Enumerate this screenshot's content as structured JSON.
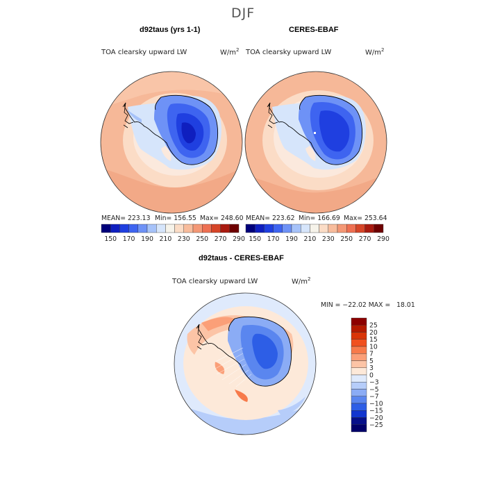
{
  "page": {
    "title": "DJF"
  },
  "chart_data": [
    {
      "type": "heatmap",
      "title": "d92taus (yrs 1-1)",
      "variable": "TOA clearsky upward LW",
      "units": "W/m",
      "units_sup": "2",
      "projection": "south polar stereographic",
      "stats": {
        "mean": "MEAN= 223.13",
        "min": "Min= 156.55",
        "max": "Max= 248.60"
      },
      "colorbar": {
        "orientation": "horizontal",
        "levels": [
          150,
          160,
          170,
          180,
          190,
          200,
          210,
          220,
          230,
          240,
          250,
          260,
          270,
          280,
          290
        ],
        "tick_labels": [
          "150",
          "170",
          "190",
          "210",
          "230",
          "250",
          "270",
          "290"
        ],
        "colors": [
          "#00007a",
          "#0f1fbf",
          "#1f3fe0",
          "#3e64f0",
          "#6e92f6",
          "#a6c2f9",
          "#d6e5fb",
          "#f6f3ea",
          "#fbdcc6",
          "#f8bc9c",
          "#f49876",
          "#ee7052",
          "#d64528",
          "#a91a0f",
          "#6e0000"
        ]
      }
    },
    {
      "type": "heatmap",
      "title": "CERES-EBAF",
      "variable": "TOA clearsky upward LW",
      "units": "W/m",
      "units_sup": "2",
      "projection": "south polar stereographic",
      "stats": {
        "mean": "MEAN= 223.62",
        "min": "Min= 166.69",
        "max": "Max= 253.64"
      },
      "colorbar": {
        "orientation": "horizontal",
        "levels": [
          150,
          160,
          170,
          180,
          190,
          200,
          210,
          220,
          230,
          240,
          250,
          260,
          270,
          280,
          290
        ],
        "tick_labels": [
          "150",
          "170",
          "190",
          "210",
          "230",
          "250",
          "270",
          "290"
        ],
        "colors": [
          "#00007a",
          "#0f1fbf",
          "#1f3fe0",
          "#3e64f0",
          "#6e92f6",
          "#a6c2f9",
          "#d6e5fb",
          "#f6f3ea",
          "#fbdcc6",
          "#f8bc9c",
          "#f49876",
          "#ee7052",
          "#d64528",
          "#a91a0f",
          "#6e0000"
        ]
      }
    },
    {
      "type": "heatmap",
      "title": "d92taus - CERES-EBAF",
      "variable": "TOA clearsky upward LW",
      "units": "W/m",
      "units_sup": "2",
      "projection": "south polar stereographic",
      "stats": {
        "min_max": "MIN = −22.02 MAX =   18.01"
      },
      "colorbar": {
        "orientation": "vertical",
        "levels": [
          25,
          20,
          15,
          10,
          7,
          5,
          3,
          0,
          -3,
          -5,
          -7,
          -10,
          -15,
          -20,
          -25
        ],
        "tick_labels": [
          "25",
          "20",
          "15",
          "10",
          "7",
          "5",
          "3",
          "0",
          "−3",
          "−5",
          "−7",
          "−10",
          "−15",
          "−20",
          "−25"
        ],
        "colors": [
          "#8c0000",
          "#b51a00",
          "#d93508",
          "#f0501e",
          "#f77a4a",
          "#fb9f78",
          "#fcc4a6",
          "#fde9d9",
          "#dfeafc",
          "#b6cdfa",
          "#8bacf5",
          "#5a86ef",
          "#2d5ee6",
          "#1236cf",
          "#06108a",
          "#00006a"
        ]
      }
    }
  ]
}
